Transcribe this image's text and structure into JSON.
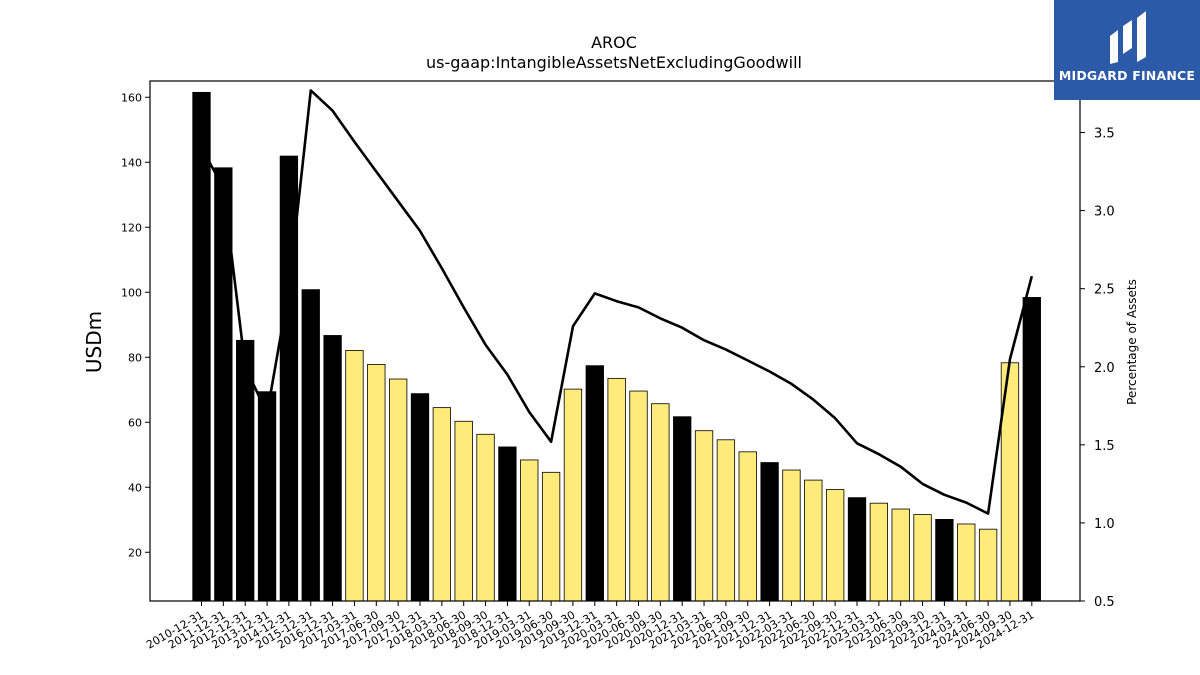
{
  "chart_data": {
    "type": "bar",
    "title": "AROC",
    "subtitle": "us-gaap:IntangibleAssetsNetExcludingGoodwill",
    "ylabel": "USDm",
    "y2label": "Percentage of Assets",
    "ylim": [
      5,
      165
    ],
    "y2lim": [
      0.5,
      3.83
    ],
    "yticks": [
      20,
      40,
      60,
      80,
      100,
      120,
      140,
      160
    ],
    "y2ticks": [
      0.5,
      1.0,
      1.5,
      2.0,
      2.5,
      3.0,
      3.5
    ],
    "grid": false,
    "categories": [
      "2010-12-31",
      "2011-12-31",
      "2012-12-31",
      "2013-12-31",
      "2014-12-31",
      "2015-12-31",
      "2016-12-31",
      "2017-03-31",
      "2017-06-30",
      "2017-09-30",
      "2017-12-31",
      "2018-03-31",
      "2018-06-30",
      "2018-09-30",
      "2018-12-31",
      "2019-03-31",
      "2019-06-30",
      "2019-09-30",
      "2019-12-31",
      "2020-03-31",
      "2020-06-30",
      "2020-09-30",
      "2020-12-31",
      "2021-03-31",
      "2021-06-30",
      "2021-09-30",
      "2021-12-31",
      "2022-03-31",
      "2022-06-30",
      "2022-09-30",
      "2022-12-31",
      "2023-03-31",
      "2023-06-30",
      "2023-09-30",
      "2023-12-31",
      "2024-03-31",
      "2024-06-30",
      "2024-09-30",
      "2024-12-31"
    ],
    "series": [
      {
        "kind": "bar",
        "axis": "left",
        "values": [
          161.5,
          138.3,
          85.2,
          69.4,
          141.9,
          100.8,
          86.7,
          82.1,
          77.8,
          73.3,
          68.8,
          64.5,
          60.3,
          56.3,
          52.4,
          48.4,
          44.6,
          70.2,
          77.4,
          73.5,
          69.6,
          65.7,
          61.7,
          57.4,
          54.6,
          50.9,
          47.6,
          45.3,
          42.2,
          39.3,
          36.8,
          35.1,
          33.3,
          31.6,
          30.1,
          28.7,
          27.1,
          78.3,
          98.4
        ],
        "fill_by_category": [
          "#000000",
          "#000000",
          "#000000",
          "#000000",
          "#000000",
          "#000000",
          "#000000",
          "#ffeb7a",
          "#ffeb7a",
          "#ffeb7a",
          "#000000",
          "#ffeb7a",
          "#ffeb7a",
          "#ffeb7a",
          "#000000",
          "#ffeb7a",
          "#ffeb7a",
          "#ffeb7a",
          "#000000",
          "#ffeb7a",
          "#ffeb7a",
          "#ffeb7a",
          "#000000",
          "#ffeb7a",
          "#ffeb7a",
          "#ffeb7a",
          "#000000",
          "#ffeb7a",
          "#ffeb7a",
          "#ffeb7a",
          "#000000",
          "#ffeb7a",
          "#ffeb7a",
          "#ffeb7a",
          "#000000",
          "#ffeb7a",
          "#ffeb7a",
          "#ffeb7a",
          "#000000"
        ]
      },
      {
        "kind": "line",
        "axis": "right",
        "color": "#000000",
        "values": [
          3.4,
          3.15,
          2.0,
          1.7,
          2.5,
          3.77,
          3.64,
          3.44,
          3.25,
          3.06,
          2.87,
          2.63,
          2.38,
          2.14,
          1.95,
          1.71,
          1.52,
          2.26,
          2.47,
          2.42,
          2.38,
          2.31,
          2.25,
          2.17,
          2.11,
          2.04,
          1.97,
          1.89,
          1.79,
          1.67,
          1.51,
          1.44,
          1.36,
          1.25,
          1.18,
          1.13,
          1.06,
          2.05,
          2.58
        ]
      }
    ]
  },
  "logo": {
    "text": "MIDGARD FINANCE",
    "bg": "#2b5aa8"
  }
}
